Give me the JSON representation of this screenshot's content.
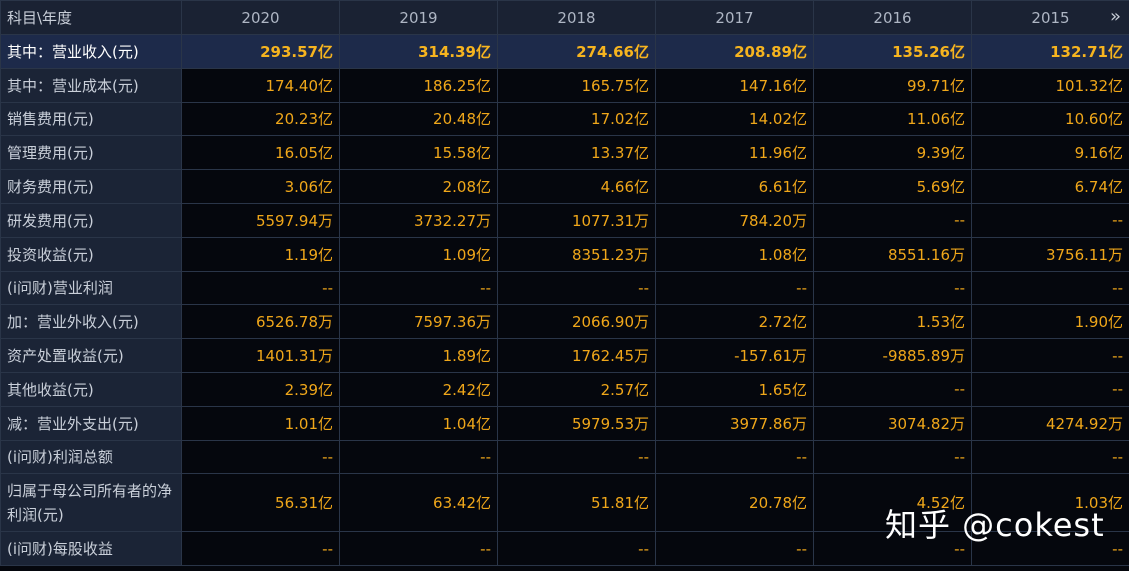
{
  "header": {
    "label": "科目\\年度",
    "years": [
      "2020",
      "2019",
      "2018",
      "2017",
      "2016",
      "2015"
    ],
    "next_icon": "»"
  },
  "rows": [
    {
      "label": "其中：营业收入(元)",
      "values": [
        "293.57亿",
        "314.39亿",
        "274.66亿",
        "208.89亿",
        "135.26亿",
        "132.71亿"
      ]
    },
    {
      "label": "其中：营业成本(元)",
      "values": [
        "174.40亿",
        "186.25亿",
        "165.75亿",
        "147.16亿",
        "99.71亿",
        "101.32亿"
      ]
    },
    {
      "label": "销售费用(元)",
      "values": [
        "20.23亿",
        "20.48亿",
        "17.02亿",
        "14.02亿",
        "11.06亿",
        "10.60亿"
      ]
    },
    {
      "label": "管理费用(元)",
      "values": [
        "16.05亿",
        "15.58亿",
        "13.37亿",
        "11.96亿",
        "9.39亿",
        "9.16亿"
      ]
    },
    {
      "label": "财务费用(元)",
      "values": [
        "3.06亿",
        "2.08亿",
        "4.66亿",
        "6.61亿",
        "5.69亿",
        "6.74亿"
      ]
    },
    {
      "label": "研发费用(元)",
      "values": [
        "5597.94万",
        "3732.27万",
        "1077.31万",
        "784.20万",
        "--",
        "--"
      ]
    },
    {
      "label": "投资收益(元)",
      "values": [
        "1.19亿",
        "1.09亿",
        "8351.23万",
        "1.08亿",
        "8551.16万",
        "3756.11万"
      ]
    },
    {
      "label": "(i问财)营业利润",
      "values": [
        "--",
        "--",
        "--",
        "--",
        "--",
        "--"
      ]
    },
    {
      "label": "加：营业外收入(元)",
      "values": [
        "6526.78万",
        "7597.36万",
        "2066.90万",
        "2.72亿",
        "1.53亿",
        "1.90亿"
      ]
    },
    {
      "label": "资产处置收益(元)",
      "values": [
        "1401.31万",
        "1.89亿",
        "1762.45万",
        "-157.61万",
        "-9885.89万",
        "--"
      ]
    },
    {
      "label": "其他收益(元)",
      "values": [
        "2.39亿",
        "2.42亿",
        "2.57亿",
        "1.65亿",
        "--",
        "--"
      ]
    },
    {
      "label": "减：营业外支出(元)",
      "values": [
        "1.01亿",
        "1.04亿",
        "5979.53万",
        "3977.86万",
        "3074.82万",
        "4274.92万"
      ]
    },
    {
      "label": "(i问财)利润总额",
      "values": [
        "--",
        "--",
        "--",
        "--",
        "--",
        "--"
      ]
    },
    {
      "label": "归属于母公司所有者的净利润(元)",
      "values": [
        "56.31亿",
        "63.42亿",
        "51.81亿",
        "20.78亿",
        "4.52亿",
        "1.03亿"
      ]
    },
    {
      "label": "(i问财)每股收益",
      "values": [
        "--",
        "--",
        "--",
        "--",
        "--",
        "--"
      ]
    }
  ],
  "watermark": "知乎 @cokest"
}
